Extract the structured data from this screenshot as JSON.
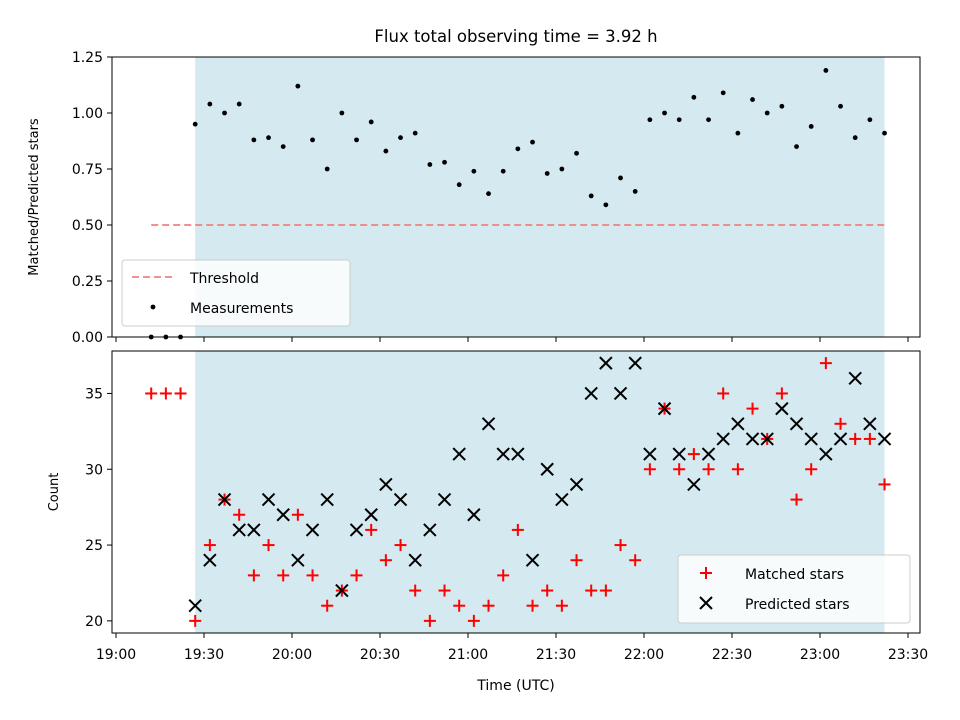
{
  "title": "Flux total observing time = 3.92 h",
  "colors": {
    "band": "#d4eaf0",
    "threshold": "#f08080",
    "measurement": "#000000",
    "matched": "#ff0000",
    "predicted": "#000000"
  },
  "chart_data": [
    {
      "type": "scatter",
      "ylabel": "Matched/Predicted stars",
      "ylim": [
        0,
        1.25
      ],
      "yticks": [
        "0.00",
        "0.25",
        "0.50",
        "0.75",
        "1.00",
        "1.25"
      ],
      "xlim": [
        "19:00",
        "23:30"
      ],
      "observing_band": [
        "19:27",
        "23:22"
      ],
      "legend": {
        "placement": "lower left",
        "threshold_label": "Threshold",
        "measurements_label": "Measurements"
      },
      "threshold": {
        "y": 0.5,
        "x_start": "19:12",
        "x_end": "23:22"
      },
      "measurements": {
        "x": [
          "19:12",
          "19:17",
          "19:22",
          "19:27",
          "19:32",
          "19:37",
          "19:42",
          "19:47",
          "19:52",
          "19:57",
          "20:02",
          "20:07",
          "20:12",
          "20:17",
          "20:22",
          "20:27",
          "20:32",
          "20:37",
          "20:42",
          "20:47",
          "20:52",
          "20:57",
          "21:02",
          "21:07",
          "21:12",
          "21:17",
          "21:22",
          "21:27",
          "21:32",
          "21:37",
          "21:42",
          "21:47",
          "21:52",
          "21:57",
          "22:02",
          "22:07",
          "22:12",
          "22:17",
          "22:22",
          "22:27",
          "22:32",
          "22:37",
          "22:42",
          "22:47",
          "22:52",
          "22:57",
          "23:02",
          "23:07",
          "23:12",
          "23:17",
          "23:22"
        ],
        "y": [
          0.0,
          0.0,
          0.0,
          0.95,
          1.04,
          1.0,
          1.04,
          0.88,
          0.89,
          0.85,
          1.12,
          0.88,
          0.75,
          1.0,
          0.88,
          0.96,
          0.83,
          0.89,
          0.91,
          0.77,
          0.78,
          0.68,
          0.74,
          0.64,
          0.74,
          0.84,
          0.87,
          0.73,
          0.75,
          0.82,
          0.63,
          0.59,
          0.71,
          0.65,
          0.97,
          1.0,
          0.97,
          1.07,
          0.97,
          1.09,
          0.91,
          1.06,
          1.0,
          1.03,
          0.85,
          0.94,
          1.19,
          1.03,
          0.89,
          0.97,
          0.91
        ]
      }
    },
    {
      "type": "scatter",
      "xlabel": "Time (UTC)",
      "ylabel": "Count",
      "ylim": [
        19.2,
        37.8
      ],
      "yticks": [
        "20",
        "25",
        "30",
        "35"
      ],
      "xlim": [
        "19:00",
        "23:30"
      ],
      "xticks": [
        "19:00",
        "19:30",
        "20:00",
        "20:30",
        "21:00",
        "21:30",
        "22:00",
        "22:30",
        "23:00",
        "23:30"
      ],
      "observing_band": [
        "19:27",
        "23:22"
      ],
      "legend": {
        "placement": "lower right"
      },
      "series": [
        {
          "name": "Matched stars",
          "marker": "plus",
          "x": [
            "19:12",
            "19:17",
            "19:22",
            "19:27",
            "19:32",
            "19:37",
            "19:42",
            "19:47",
            "19:52",
            "19:57",
            "20:02",
            "20:07",
            "20:12",
            "20:17",
            "20:22",
            "20:27",
            "20:32",
            "20:37",
            "20:42",
            "20:47",
            "20:52",
            "20:57",
            "21:02",
            "21:07",
            "21:12",
            "21:17",
            "21:22",
            "21:27",
            "21:32",
            "21:37",
            "21:42",
            "21:47",
            "21:52",
            "21:57",
            "22:02",
            "22:07",
            "22:12",
            "22:17",
            "22:22",
            "22:27",
            "22:32",
            "22:37",
            "22:42",
            "22:47",
            "22:52",
            "22:57",
            "23:02",
            "23:07",
            "23:12",
            "23:17",
            "23:22"
          ],
          "y": [
            35,
            35,
            35,
            20,
            25,
            28,
            27,
            23,
            25,
            23,
            27,
            23,
            21,
            22,
            23,
            26,
            24,
            25,
            22,
            20,
            22,
            21,
            20,
            21,
            23,
            26,
            21,
            22,
            21,
            24,
            22,
            22,
            25,
            24,
            30,
            34,
            30,
            31,
            30,
            35,
            30,
            34,
            32,
            35,
            28,
            30,
            37,
            33,
            32,
            32,
            29
          ]
        },
        {
          "name": "Predicted stars",
          "marker": "x",
          "x": [
            "19:27",
            "19:32",
            "19:37",
            "19:42",
            "19:47",
            "19:52",
            "19:57",
            "20:02",
            "20:07",
            "20:12",
            "20:17",
            "20:22",
            "20:27",
            "20:32",
            "20:37",
            "20:42",
            "20:47",
            "20:52",
            "20:57",
            "21:02",
            "21:07",
            "21:12",
            "21:17",
            "21:22",
            "21:27",
            "21:32",
            "21:37",
            "21:42",
            "21:47",
            "21:52",
            "21:57",
            "22:02",
            "22:07",
            "22:12",
            "22:17",
            "22:22",
            "22:27",
            "22:32",
            "22:37",
            "22:42",
            "22:47",
            "22:52",
            "22:57",
            "23:02",
            "23:07",
            "23:12",
            "23:17",
            "23:22"
          ],
          "y": [
            21,
            24,
            28,
            26,
            26,
            28,
            27,
            24,
            26,
            28,
            22,
            26,
            27,
            29,
            28,
            24,
            26,
            28,
            31,
            27,
            33,
            31,
            31,
            24,
            30,
            28,
            29,
            35,
            37,
            35,
            37,
            31,
            34,
            31,
            29,
            31,
            32,
            33,
            32,
            32,
            34,
            33,
            32,
            31,
            32,
            36,
            33,
            32
          ]
        }
      ]
    }
  ]
}
